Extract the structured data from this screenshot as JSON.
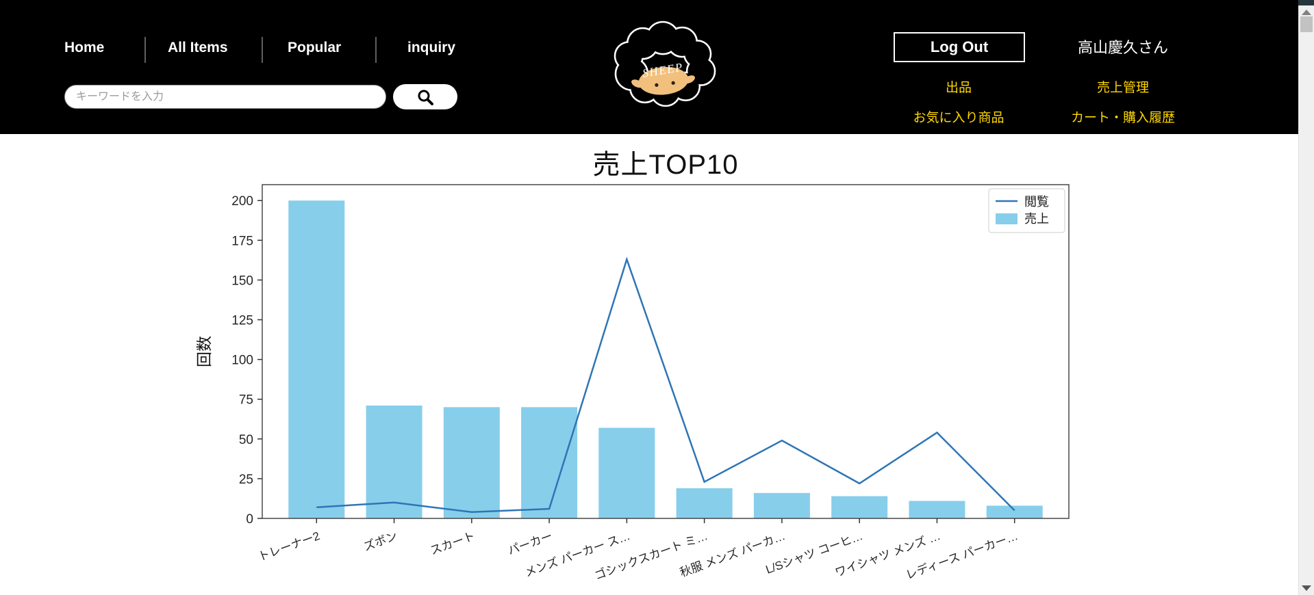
{
  "header": {
    "nav_items": [
      {
        "label": "Home"
      },
      {
        "label": "All Items"
      },
      {
        "label": "Popular"
      },
      {
        "label": "inquiry"
      }
    ],
    "search": {
      "placeholder": "キーワードを入力",
      "icon": "magnifier"
    },
    "logo": {
      "brand": "SHEEP"
    },
    "logout_label": "Log Out",
    "username": "高山慶久さん",
    "user_links": [
      {
        "label": "出品"
      },
      {
        "label": "売上管理"
      },
      {
        "label": "お気に入り商品"
      },
      {
        "label": "カート・購入履歴"
      }
    ],
    "colors": {
      "bg": "#000000",
      "text": "#FFFFFF",
      "link": "#FFD700"
    }
  },
  "chart_data": {
    "type": "bar+line",
    "title": "売上TOP10",
    "ylabel": "回数",
    "categories": [
      "トレーナー2",
      "ズボン",
      "スカート",
      "パーカー",
      "メンズ パーカー ス…",
      "ゴシックスカート ミ…",
      "秋服 メンズ パーカ…",
      "L/Sシャツ コーヒ…",
      "ワイシャツ メンズ …",
      "レディース パーカー…"
    ],
    "series": [
      {
        "name": "閲覧",
        "type": "line",
        "color": "#2E75B5",
        "values": [
          7,
          10,
          4,
          6,
          163,
          23,
          49,
          22,
          54,
          5
        ]
      },
      {
        "name": "売上",
        "type": "bar",
        "color": "#87CEEB",
        "values": [
          200,
          71,
          70,
          70,
          57,
          19,
          16,
          14,
          11,
          8
        ]
      }
    ],
    "ylim": [
      0,
      210
    ],
    "yticks": [
      0,
      25,
      50,
      75,
      100,
      125,
      150,
      175,
      200
    ],
    "legend_position": "top-right",
    "grid": false
  }
}
